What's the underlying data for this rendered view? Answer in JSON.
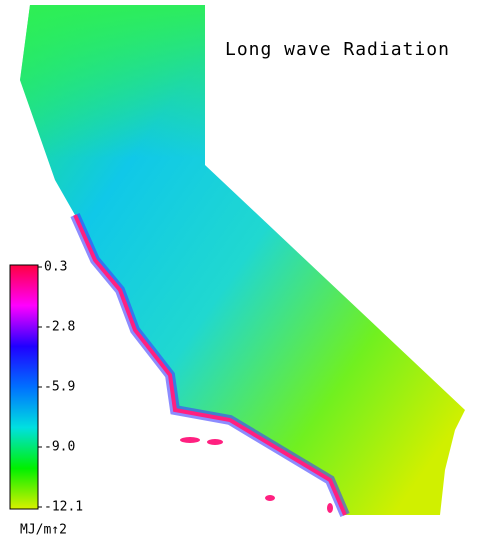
{
  "map": {
    "title": "Long wave Radiation",
    "colorbar": {
      "lim": [
        -12.1,
        0.3
      ],
      "colors": [
        "#d8f000",
        "#00f000",
        "#00e0e0",
        "#0070ff",
        "#2000ff",
        "#ff00ff",
        "#ff0040"
      ],
      "ticks": [
        0.3,
        -2.8,
        -5.9,
        {
          "value": -9,
          "label": "-9.0"
        },
        -12.1
      ],
      "units": "MJ/m↑2"
    }
  }
}
